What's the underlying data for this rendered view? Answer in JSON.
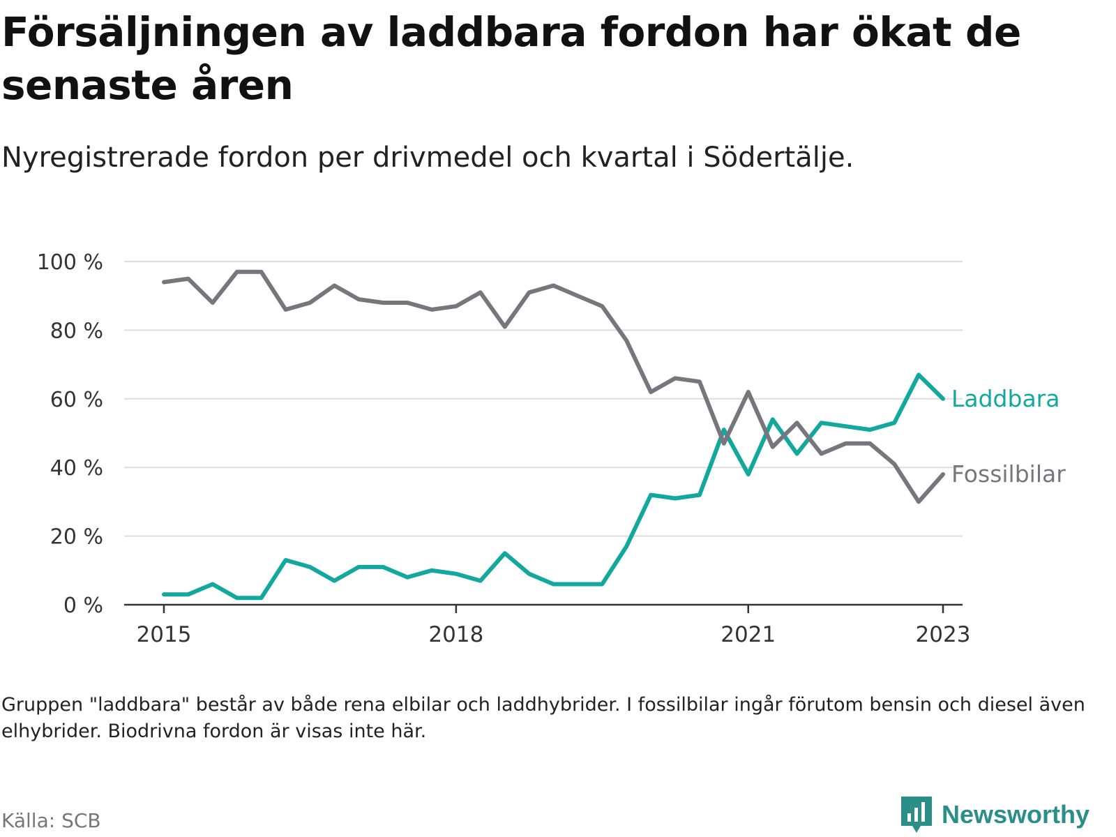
{
  "title": "Försäljningen av laddbara fordon har ökat de senaste åren",
  "subtitle": "Nyregistrerade fordon per drivmedel och kvartal i Södertälje.",
  "note": "Gruppen \"laddbara\" består av både rena elbilar och laddhybrider. I fossilbilar ingår förutom bensin och diesel även elhybrider. Biodrivna fordon är visas inte här.",
  "source": "Källa: SCB",
  "brand": "Newsworthy",
  "colors": {
    "laddbara": "#13a89e",
    "fossil": "#77767c",
    "grid": "#dddddd",
    "axis": "#333333",
    "brand": "#2a8f88"
  },
  "chart_data": {
    "type": "line",
    "title": "Försäljningen av laddbara fordon har ökat de senaste åren",
    "xlabel": "",
    "ylabel": "",
    "ylim": [
      0,
      100
    ],
    "yticks": [
      0,
      20,
      40,
      60,
      80,
      100
    ],
    "ytick_labels": [
      "0 %",
      "20 %",
      "40 %",
      "60 %",
      "80 %",
      "100 %"
    ],
    "xticks": [
      2015.0,
      2018.0,
      2021.0,
      2023.0
    ],
    "xtick_labels": [
      "2015",
      "2018",
      "2021",
      "2023"
    ],
    "x": [
      2015.0,
      2015.25,
      2015.5,
      2015.75,
      2016.0,
      2016.25,
      2016.5,
      2016.75,
      2017.0,
      2017.25,
      2017.5,
      2017.75,
      2018.0,
      2018.25,
      2018.5,
      2018.75,
      2019.0,
      2019.25,
      2019.5,
      2019.75,
      2020.0,
      2020.25,
      2020.5,
      2020.75,
      2021.0,
      2021.25,
      2021.5,
      2021.75,
      2022.0,
      2022.25,
      2022.5,
      2022.75,
      2023.0
    ],
    "series": [
      {
        "name": "Laddbara",
        "label": "Laddbara",
        "values": [
          3,
          3,
          6,
          2,
          2,
          13,
          11,
          7,
          11,
          11,
          8,
          10,
          9,
          7,
          15,
          9,
          6,
          6,
          6,
          17,
          32,
          31,
          32,
          51,
          38,
          54,
          44,
          53,
          52,
          51,
          53,
          67,
          60
        ]
      },
      {
        "name": "Fossilbilar",
        "label": "Fossilbilar",
        "values": [
          94,
          95,
          88,
          97,
          97,
          86,
          88,
          93,
          89,
          88,
          88,
          86,
          87,
          91,
          81,
          91,
          93,
          90,
          87,
          77,
          62,
          66,
          65,
          47,
          62,
          46,
          53,
          44,
          47,
          47,
          41,
          30,
          38
        ]
      }
    ],
    "grid": true,
    "legend": "inline-end-labels"
  }
}
